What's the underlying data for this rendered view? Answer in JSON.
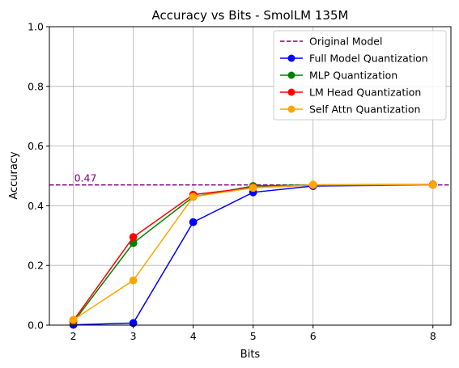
{
  "chart_data": {
    "type": "line",
    "title": "Accuracy vs Bits - SmolLM 135M",
    "xlabel": "Bits",
    "ylabel": "Accuracy",
    "xlim": [
      1.6,
      8.3
    ],
    "ylim": [
      0.0,
      1.0
    ],
    "x_ticks": [
      2,
      3,
      4,
      5,
      6,
      8
    ],
    "y_ticks": [
      0.0,
      0.2,
      0.4,
      0.6,
      0.8,
      1.0
    ],
    "y_tick_labels": [
      "0.0",
      "0.2",
      "0.4",
      "0.6",
      "0.8",
      "1.0"
    ],
    "grid": true,
    "legend_position": "top-right",
    "reference_line": {
      "name": "Original Model",
      "value": 0.47,
      "label": "0.47",
      "color": "#800080",
      "style": "dashed"
    },
    "x": [
      2,
      3,
      4,
      5,
      6,
      8
    ],
    "series": [
      {
        "name": "Full Model Quantization",
        "color": "#0000ff",
        "values": [
          0.001,
          0.007,
          0.345,
          0.445,
          0.466,
          0.47
        ]
      },
      {
        "name": "MLP Quantization",
        "color": "#008000",
        "values": [
          0.01,
          0.275,
          0.43,
          0.466,
          0.47,
          0.471
        ]
      },
      {
        "name": "LM Head Quantization",
        "color": "#ff0000",
        "values": [
          0.015,
          0.295,
          0.437,
          0.461,
          0.469,
          0.471
        ]
      },
      {
        "name": "Self Attn Quantization",
        "color": "#ffa500",
        "values": [
          0.018,
          0.15,
          0.43,
          0.46,
          0.47,
          0.47
        ]
      }
    ]
  }
}
